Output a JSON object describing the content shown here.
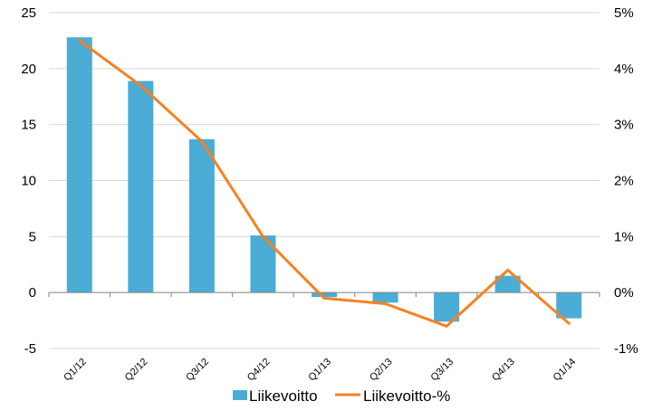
{
  "chart_data": {
    "type": "bar",
    "categories": [
      "Q1/12",
      "Q2/12",
      "Q3/12",
      "Q4/12",
      "Q1/13",
      "Q2/13",
      "Q3/13",
      "Q4/13",
      "Q1/14"
    ],
    "series": [
      {
        "name": "Liikevoitto",
        "type": "bar",
        "axis": "left",
        "color": "#4bacd6",
        "values": [
          22.8,
          18.9,
          13.7,
          5.1,
          -0.4,
          -0.9,
          -2.6,
          1.5,
          -2.3
        ]
      },
      {
        "name": "Liikevoitto-%",
        "type": "line",
        "axis": "right",
        "color": "#f58220",
        "values": [
          4.5,
          3.7,
          2.7,
          1.0,
          -0.1,
          -0.2,
          -0.6,
          0.4,
          -0.55
        ]
      }
    ],
    "y_left": {
      "range": [
        -5,
        25
      ],
      "ticks": [
        -5,
        0,
        5,
        10,
        15,
        20,
        25
      ]
    },
    "y_right": {
      "range": [
        -1,
        5
      ],
      "ticks": [
        -1,
        0,
        1,
        2,
        3,
        4,
        5
      ],
      "tick_labels": [
        "-1%",
        "0%",
        "1%",
        "2%",
        "3%",
        "4%",
        "5%"
      ]
    },
    "grid": true,
    "legend_position": "bottom"
  }
}
